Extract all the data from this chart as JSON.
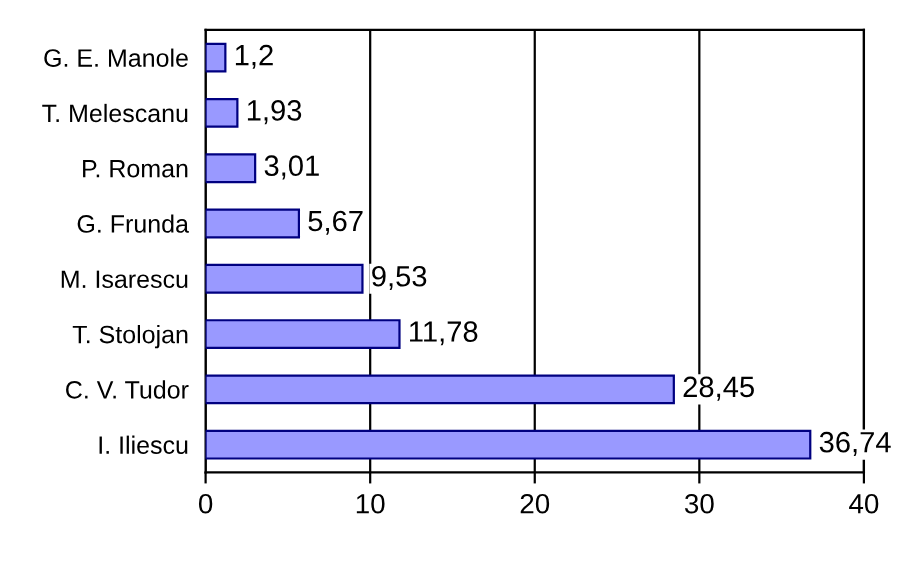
{
  "chart_data": {
    "type": "bar",
    "orientation": "horizontal",
    "categories": [
      "G. E. Manole",
      "T. Melescanu",
      "P. Roman",
      "G. Frunda",
      "M. Isarescu",
      "T. Stolojan",
      "C. V. Tudor",
      "I. Iliescu"
    ],
    "values": [
      1.2,
      1.93,
      3.01,
      5.67,
      9.53,
      11.78,
      28.45,
      36.74
    ],
    "value_labels": [
      "1,2",
      "1,93",
      "3,01",
      "5,67",
      "9,53",
      "11,78",
      "28,45",
      "36,74"
    ],
    "color": "#9999ff",
    "xlim": [
      0,
      40
    ],
    "xticks": [
      0,
      10,
      20,
      30,
      40
    ],
    "grid": "x",
    "legend": false
  }
}
